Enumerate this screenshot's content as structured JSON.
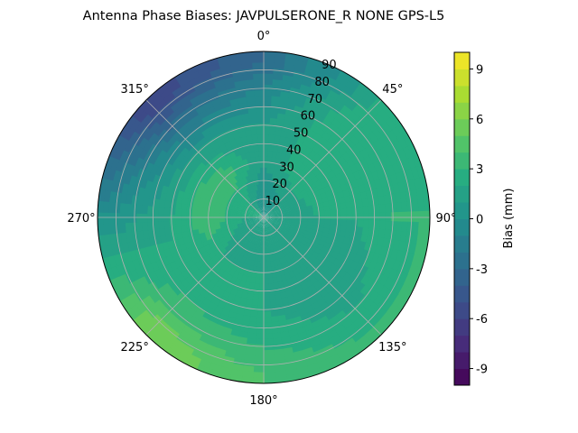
{
  "chart_data": {
    "type": "heatmap",
    "subtype": "polar-filled-contour",
    "title": "Antenna Phase Biases: JAVPULSERONE_R  NONE GPS-L5",
    "colorbar_label": "Bias (mm)",
    "colormap": "viridis",
    "value_range": [
      -10,
      10
    ],
    "contour_step": 1,
    "colorbar_ticks": [
      "-9",
      "-6",
      "-3",
      "0",
      "3",
      "6",
      "9"
    ],
    "colorbar_tick_values": [
      -9,
      -6,
      -3,
      0,
      3,
      6,
      9
    ],
    "angle_ticks": [
      {
        "deg": 0,
        "label": "0°"
      },
      {
        "deg": 45,
        "label": "45°"
      },
      {
        "deg": 90,
        "label": "90°"
      },
      {
        "deg": 135,
        "label": "135°"
      },
      {
        "deg": 180,
        "label": "180°"
      },
      {
        "deg": 225,
        "label": "225°"
      },
      {
        "deg": 270,
        "label": "270°"
      },
      {
        "deg": 315,
        "label": "315°"
      }
    ],
    "radial_ticks": [
      {
        "r": 10,
        "label": "10"
      },
      {
        "r": 20,
        "label": "20"
      },
      {
        "r": 30,
        "label": "30"
      },
      {
        "r": 40,
        "label": "40"
      },
      {
        "r": 50,
        "label": "50"
      },
      {
        "r": 60,
        "label": "60"
      },
      {
        "r": 70,
        "label": "70"
      },
      {
        "r": 80,
        "label": "80"
      },
      {
        "r": 90,
        "label": "90"
      }
    ],
    "rlim": [
      0,
      90
    ],
    "theta_zero": "N",
    "theta_direction": "clockwise",
    "grid": true,
    "field_samples": [
      {
        "az": 0,
        "zen": 10,
        "v": 0
      },
      {
        "az": 0,
        "zen": 30,
        "v": 1
      },
      {
        "az": 0,
        "zen": 50,
        "v": 1
      },
      {
        "az": 0,
        "zen": 70,
        "v": -1
      },
      {
        "az": 0,
        "zen": 85,
        "v": -3
      },
      {
        "az": 45,
        "zen": 10,
        "v": 1
      },
      {
        "az": 45,
        "zen": 30,
        "v": 3
      },
      {
        "az": 45,
        "zen": 50,
        "v": 3
      },
      {
        "az": 45,
        "zen": 70,
        "v": 3
      },
      {
        "az": 45,
        "zen": 85,
        "v": 2
      },
      {
        "az": 90,
        "zen": 10,
        "v": 1
      },
      {
        "az": 90,
        "zen": 30,
        "v": 2
      },
      {
        "az": 90,
        "zen": 50,
        "v": 2
      },
      {
        "az": 90,
        "zen": 70,
        "v": 3
      },
      {
        "az": 90,
        "zen": 85,
        "v": 3
      },
      {
        "az": 135,
        "zen": 10,
        "v": 1
      },
      {
        "az": 135,
        "zen": 30,
        "v": 2
      },
      {
        "az": 135,
        "zen": 50,
        "v": 1
      },
      {
        "az": 135,
        "zen": 70,
        "v": 2
      },
      {
        "az": 135,
        "zen": 85,
        "v": 3
      },
      {
        "az": 180,
        "zen": 10,
        "v": 1
      },
      {
        "az": 180,
        "zen": 30,
        "v": 2
      },
      {
        "az": 180,
        "zen": 50,
        "v": 2
      },
      {
        "az": 180,
        "zen": 70,
        "v": 3
      },
      {
        "az": 180,
        "zen": 85,
        "v": 4
      },
      {
        "az": 225,
        "zen": 10,
        "v": 1
      },
      {
        "az": 225,
        "zen": 30,
        "v": 2
      },
      {
        "az": 225,
        "zen": 50,
        "v": 2
      },
      {
        "az": 225,
        "zen": 70,
        "v": 4
      },
      {
        "az": 225,
        "zen": 85,
        "v": 6
      },
      {
        "az": 270,
        "zen": 10,
        "v": 2
      },
      {
        "az": 270,
        "zen": 30,
        "v": 4
      },
      {
        "az": 270,
        "zen": 50,
        "v": 2
      },
      {
        "az": 270,
        "zen": 70,
        "v": 1
      },
      {
        "az": 270,
        "zen": 85,
        "v": 0
      },
      {
        "az": 315,
        "zen": 10,
        "v": 2
      },
      {
        "az": 315,
        "zen": 30,
        "v": 4
      },
      {
        "az": 315,
        "zen": 50,
        "v": 1
      },
      {
        "az": 315,
        "zen": 70,
        "v": -3
      },
      {
        "az": 315,
        "zen": 85,
        "v": -6
      }
    ]
  }
}
